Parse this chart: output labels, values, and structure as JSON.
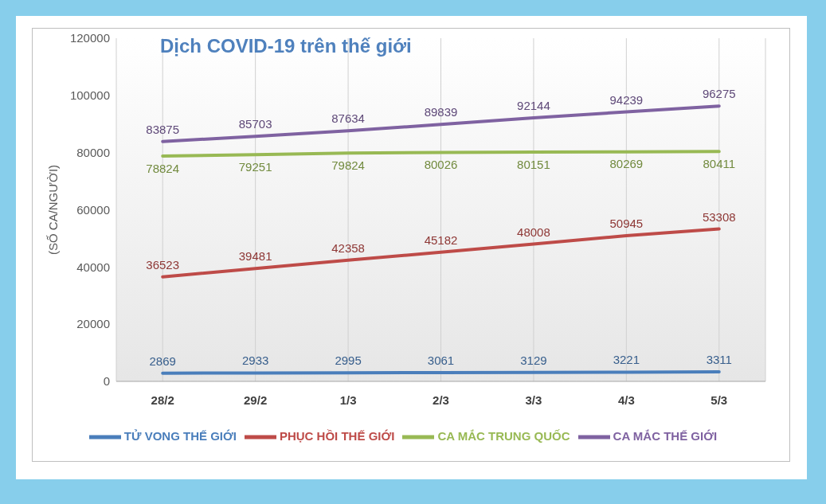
{
  "chart_data": {
    "type": "line",
    "title": "Dịch COVID-19 trên thế giới",
    "ylabel": "(SỐ CA/NGƯỜI)",
    "categories": [
      "28/2",
      "29/2",
      "1/3",
      "2/3",
      "3/3",
      "4/3",
      "5/3"
    ],
    "series": [
      {
        "name": "TỬ VONG THẾ GIỚI",
        "color": "#4a7ebb",
        "values": [
          2869,
          2933,
          2995,
          3061,
          3129,
          3221,
          3311
        ]
      },
      {
        "name": "PHỤC HỒI THẾ GIỚI",
        "color": "#be4b48",
        "values": [
          36523,
          39481,
          42358,
          45182,
          48008,
          50945,
          53308
        ]
      },
      {
        "name": "CA MẮC TRUNG QUỐC",
        "color": "#98b954",
        "values": [
          78824,
          79251,
          79824,
          80026,
          80151,
          80269,
          80411
        ]
      },
      {
        "name": "CA MẮC THẾ GIỚI",
        "color": "#7f62a1",
        "values": [
          83875,
          85703,
          87634,
          89839,
          92144,
          94239,
          96275
        ]
      }
    ],
    "ylim": [
      0,
      120000
    ],
    "yticks": [
      0,
      20000,
      40000,
      60000,
      80000,
      100000,
      120000
    ],
    "grid": "x",
    "legend": "bottom",
    "data_labels": true,
    "marker": "none",
    "line_style": "solid"
  }
}
